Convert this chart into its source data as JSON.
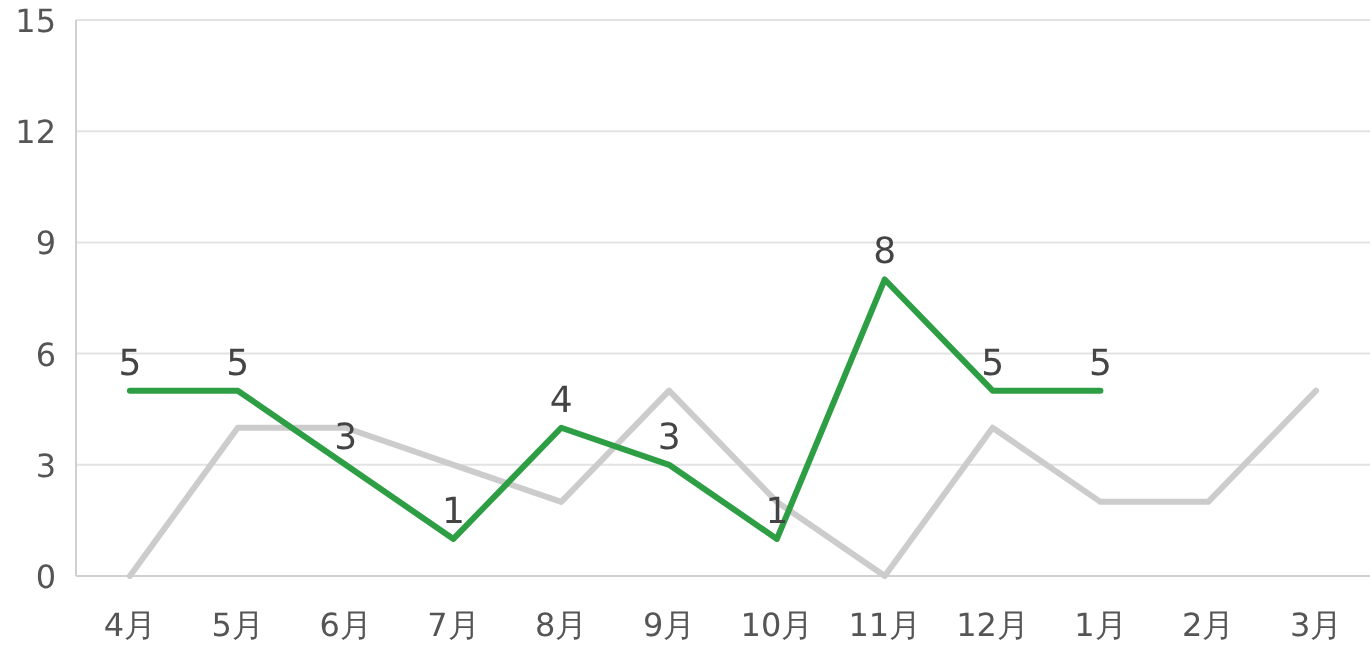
{
  "chart_data": {
    "type": "line",
    "categories": [
      "4月",
      "5月",
      "6月",
      "7月",
      "8月",
      "9月",
      "10月",
      "11月",
      "12月",
      "1月",
      "2月",
      "3月"
    ],
    "series": [
      {
        "color": "#cccccc",
        "values": [
          0,
          4,
          4,
          3,
          2,
          5,
          2,
          0,
          4,
          2,
          2,
          5
        ]
      },
      {
        "color": "#2e9e44",
        "values": [
          5,
          5,
          3,
          1,
          4,
          3,
          1,
          8,
          5,
          5,
          null,
          null
        ],
        "value_labels": [
          "5",
          "5",
          "3",
          "1",
          "4",
          "3",
          "1",
          "8",
          "5",
          "5",
          null,
          null
        ]
      }
    ],
    "ylim": [
      0,
      15
    ],
    "yticks": [
      0,
      3,
      6,
      9,
      12,
      15
    ],
    "grid": "y",
    "marker": "none",
    "line_style": "solid"
  }
}
